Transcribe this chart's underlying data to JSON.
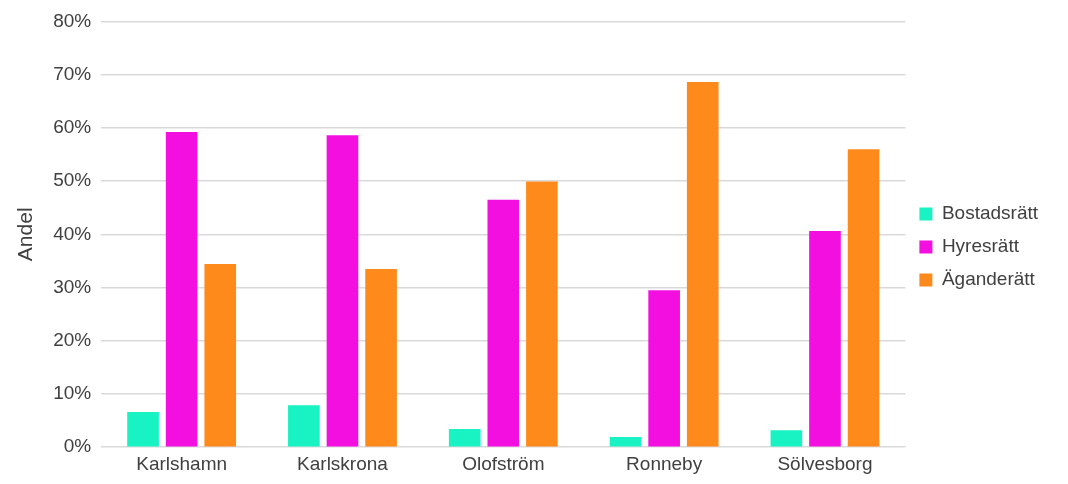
{
  "chart_data": {
    "type": "bar",
    "ylabel": "Andel",
    "categories": [
      "Karlshamn",
      "Karlskrona",
      "Olofström",
      "Ronneby",
      "Sölvesborg"
    ],
    "series": [
      {
        "name": "Bostadsrätt",
        "color": "#19f2c2",
        "values": [
          6.6,
          7.9,
          3.4,
          1.9,
          3.2
        ]
      },
      {
        "name": "Hyresrätt",
        "color": "#f20fe0",
        "values": [
          59.2,
          58.6,
          46.5,
          29.5,
          40.6
        ]
      },
      {
        "name": "Äganderätt",
        "color": "#ff8a1c",
        "values": [
          34.4,
          33.5,
          49.9,
          68.6,
          56.0
        ]
      }
    ],
    "ylim": [
      0,
      80
    ],
    "yticks": [
      {
        "value": 0,
        "label": "0%"
      },
      {
        "value": 10,
        "label": "10%"
      },
      {
        "value": 20,
        "label": "20%"
      },
      {
        "value": 30,
        "label": "30%"
      },
      {
        "value": 40,
        "label": "40%"
      },
      {
        "value": 50,
        "label": "50%"
      },
      {
        "value": 60,
        "label": "60%"
      },
      {
        "value": 70,
        "label": "70%"
      },
      {
        "value": 80,
        "label": "80%"
      }
    ],
    "grid": "y",
    "legend": "right"
  }
}
